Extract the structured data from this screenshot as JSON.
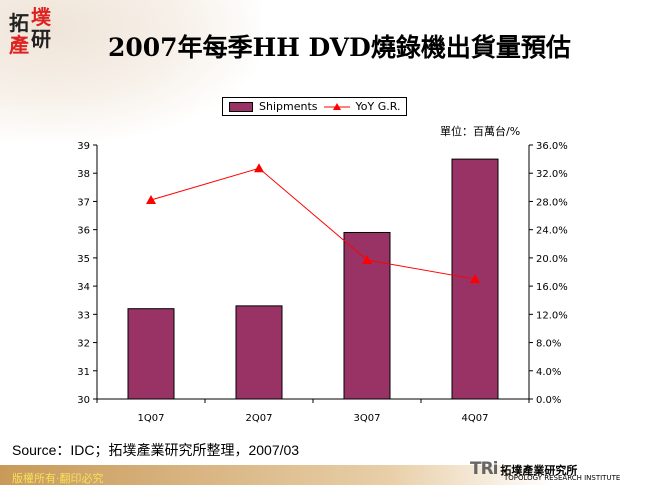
{
  "header": {
    "title": "2007年每季HH DVD燒錄機出貨量預估",
    "logo_text": [
      "拓",
      "墣",
      "產",
      "研"
    ]
  },
  "unit_note": "單位：百萬台/%",
  "source": "Source：IDC；拓墣產業研究所整理，2007/03",
  "footer": {
    "copyright": "版權所有‧翻印必究",
    "institute_zh": "拓墣產業研究所",
    "institute_en": "TOPOLOGY RESEARCH INSTITUTE",
    "institute_logo": "TRi"
  },
  "chart_data": {
    "type": "bar+line",
    "categories": [
      "1Q07",
      "2Q07",
      "3Q07",
      "4Q07"
    ],
    "series": [
      {
        "name": "Shipments",
        "type": "bar",
        "axis": "left",
        "color": "#993366",
        "values": [
          33.2,
          33.3,
          35.9,
          38.5
        ]
      },
      {
        "name": "YoY G.R.",
        "type": "line",
        "axis": "right",
        "color": "#ff0000",
        "marker": "triangle",
        "values": [
          28.2,
          32.7,
          19.7,
          17.0
        ]
      }
    ],
    "y_left": {
      "min": 30,
      "max": 39,
      "ticks": [
        "30",
        "31",
        "32",
        "33",
        "34",
        "35",
        "36",
        "37",
        "38",
        "39"
      ]
    },
    "y_right": {
      "min": 0,
      "max": 36,
      "ticks": [
        "0.0%",
        "4.0%",
        "8.0%",
        "12.0%",
        "16.0%",
        "20.0%",
        "24.0%",
        "28.0%",
        "32.0%",
        "36.0%"
      ]
    },
    "grid": false,
    "legend": "top"
  }
}
